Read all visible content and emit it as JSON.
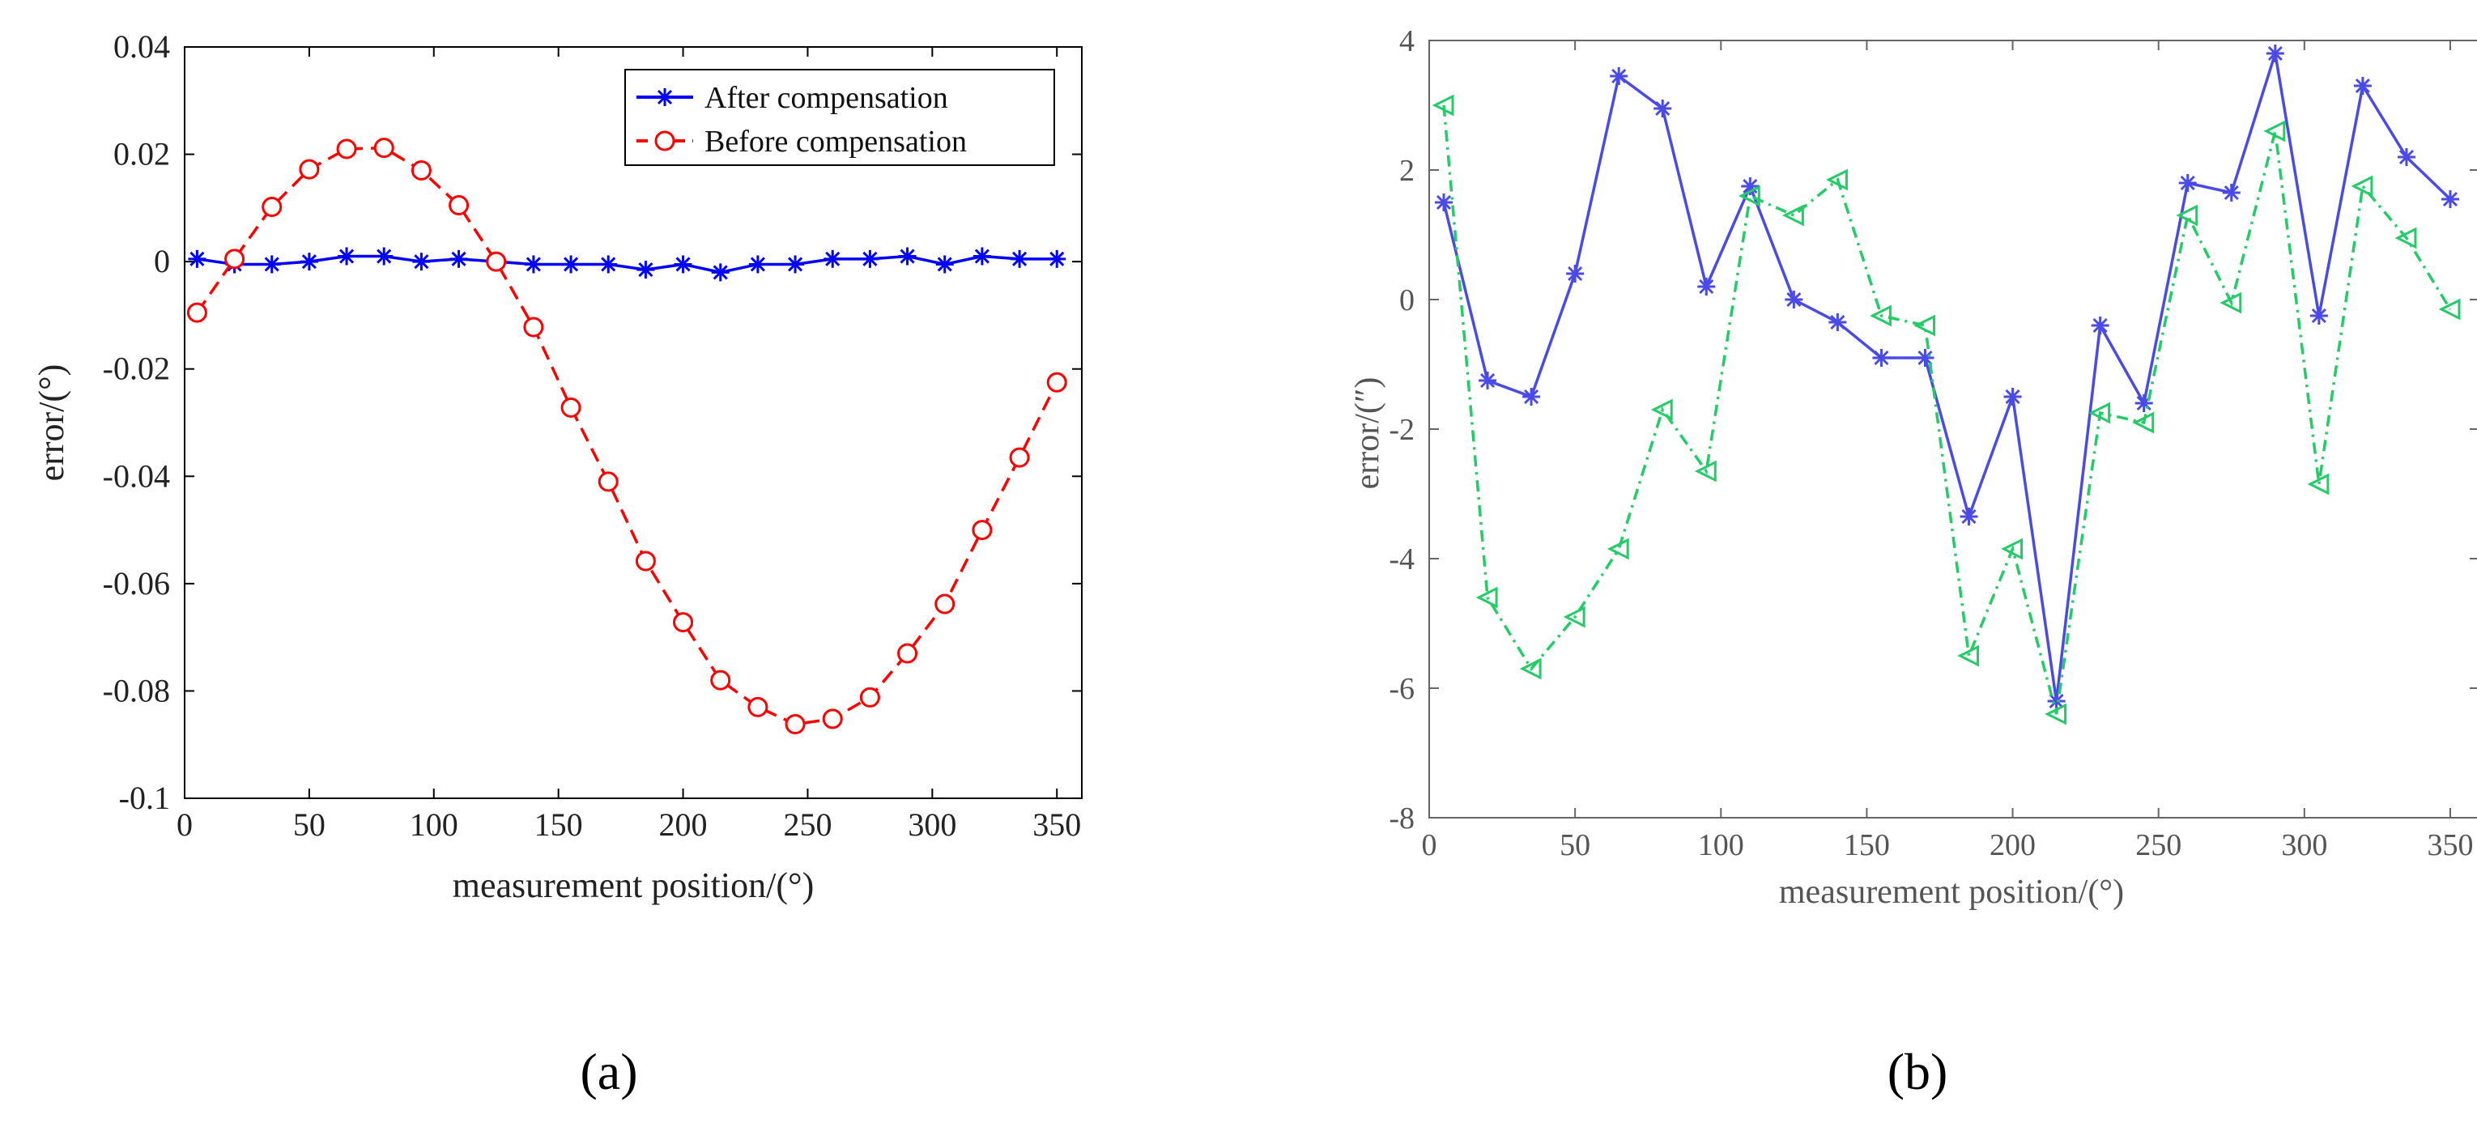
{
  "chart_data": [
    {
      "type": "line",
      "panel_label": "(a)",
      "xlabel": "measurement position/(°)",
      "ylabel": "error/(°)",
      "xlim": [
        0,
        360
      ],
      "ylim": [
        -0.1,
        0.04
      ],
      "xticks": [
        0,
        50,
        100,
        150,
        200,
        250,
        300,
        350
      ],
      "yticks": [
        -0.1,
        -0.08,
        -0.06,
        -0.04,
        -0.02,
        0,
        0.02,
        0.04
      ],
      "xtick_labels": [
        "0",
        "50",
        "100",
        "150",
        "200",
        "250",
        "300",
        "350"
      ],
      "ytick_labels": [
        "-0.1",
        "-0.08",
        "-0.06",
        "-0.04",
        "-0.02",
        "0",
        "0.02",
        "0.04"
      ],
      "grid": false,
      "legend": "top-right",
      "x": [
        5,
        20,
        35,
        50,
        65,
        80,
        95,
        110,
        125,
        140,
        155,
        170,
        185,
        200,
        215,
        230,
        245,
        260,
        275,
        290,
        305,
        320,
        335,
        350
      ],
      "series": [
        {
          "name": "After compensation",
          "color": "#0000ff",
          "marker": "asterisk",
          "linestyle": "solid",
          "values": [
            0.0005,
            -0.0005,
            -0.0005,
            0,
            0.001,
            0.001,
            0,
            0.0005,
            0,
            -0.0005,
            -0.0005,
            -0.0005,
            -0.0015,
            -0.0005,
            -0.002,
            -0.0005,
            -0.0005,
            0.0005,
            0.0005,
            0.001,
            -0.0005,
            0.001,
            0.0005,
            0.0005
          ]
        },
        {
          "name": "Before compensation",
          "color": "#ff0000",
          "marker": "circle",
          "linestyle": "dashed",
          "values": [
            -0.0095,
            0.0005,
            0.0102,
            0.0172,
            0.021,
            0.0212,
            0.017,
            0.0105,
            0,
            -0.0122,
            -0.0272,
            -0.041,
            -0.0558,
            -0.0672,
            -0.078,
            -0.083,
            -0.0862,
            -0.0852,
            -0.0812,
            -0.073,
            -0.0638,
            -0.05,
            -0.0365,
            -0.0225
          ]
        }
      ]
    },
    {
      "type": "line",
      "panel_label": "(b)",
      "xlabel": "measurement position/(°)",
      "ylabel": "error/(″)",
      "xlim": [
        0,
        360
      ],
      "ylim": [
        -8,
        4
      ],
      "xticks": [
        0,
        50,
        100,
        150,
        200,
        250,
        300,
        350
      ],
      "yticks": [
        -8,
        -6,
        -4,
        -2,
        0,
        2,
        4
      ],
      "xtick_labels": [
        "0",
        "50",
        "100",
        "150",
        "200",
        "250",
        "300",
        "350"
      ],
      "ytick_labels": [
        "-8",
        "-6",
        "-4",
        "-2",
        "0",
        "2",
        "4"
      ],
      "grid": false,
      "x": [
        5,
        20,
        35,
        50,
        65,
        80,
        95,
        110,
        125,
        140,
        155,
        170,
        185,
        200,
        215,
        230,
        245,
        260,
        275,
        290,
        305,
        320,
        335,
        350
      ],
      "series": [
        {
          "name": "",
          "color": "#4a4ae6",
          "marker": "asterisk",
          "linestyle": "solid",
          "values": [
            1.5,
            -1.25,
            -1.5,
            0.4,
            3.45,
            2.95,
            0.2,
            1.75,
            0,
            -0.35,
            -0.9,
            -0.9,
            -3.35,
            -1.5,
            -6.2,
            -0.4,
            -1.6,
            1.8,
            1.65,
            3.8,
            -0.25,
            3.3,
            2.2,
            1.55
          ]
        },
        {
          "name": "",
          "color": "#22cc66",
          "marker": "triangle-left",
          "linestyle": "dashdot",
          "values": [
            3.0,
            -4.6,
            -5.7,
            -4.9,
            -3.85,
            -1.7,
            -2.65,
            1.6,
            1.3,
            1.85,
            -0.25,
            -0.4,
            -5.5,
            -3.85,
            -6.4,
            -1.75,
            -1.9,
            1.3,
            -0.05,
            2.6,
            -2.85,
            1.75,
            0.95,
            -0.15
          ]
        }
      ]
    }
  ]
}
